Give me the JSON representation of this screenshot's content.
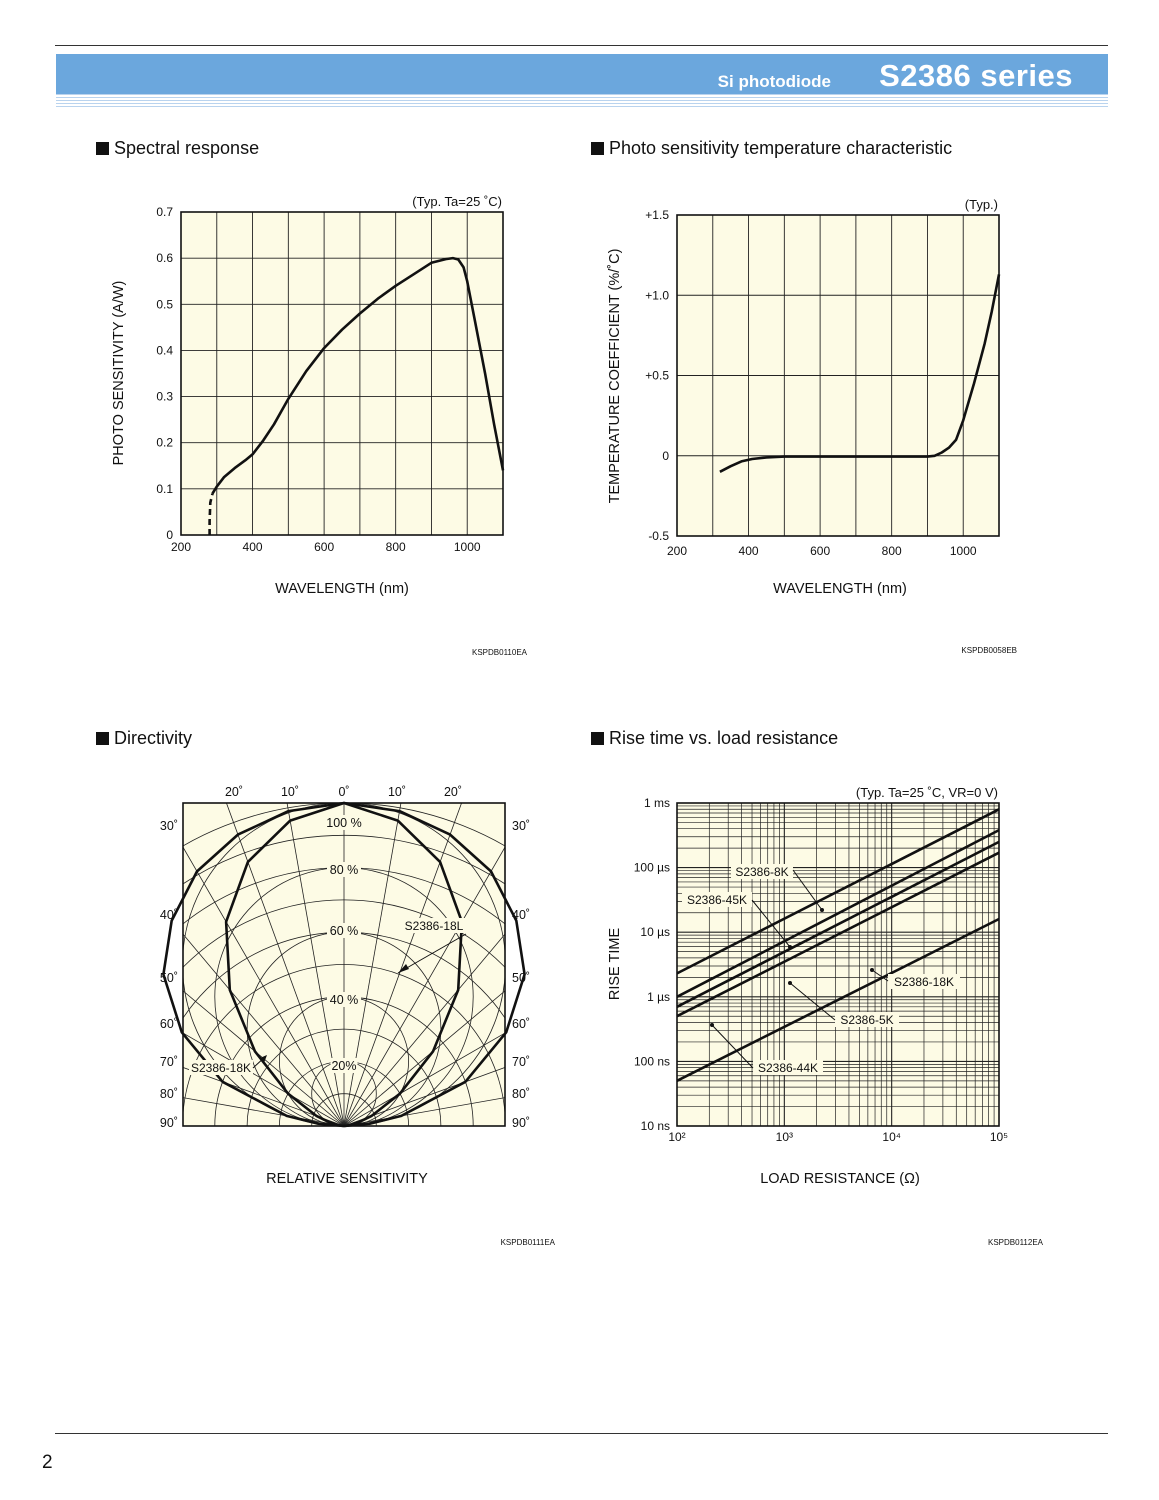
{
  "header": {
    "subtitle": "Si photodiode",
    "title": "S2386 series",
    "accent_color": "#6ba7dd"
  },
  "page_number": "2",
  "chart_data": [
    {
      "id": "spectral",
      "type": "line",
      "title": "Spectral response",
      "note": "(Typ. Ta=25 ˚C)",
      "xlabel": "WAVELENGTH (nm)",
      "ylabel": "PHOTO SENSITIVITY (A/W)",
      "code": "KSPDB0110EA",
      "xlim": [
        200,
        1100
      ],
      "ylim": [
        0,
        0.7
      ],
      "xticks": [
        200,
        400,
        600,
        800,
        1000
      ],
      "xtick_labels": [
        "200",
        "400",
        "600",
        "800",
        "1000"
      ],
      "yticks": [
        0,
        0.1,
        0.2,
        0.3,
        0.4,
        0.5,
        0.6,
        0.7
      ],
      "ytick_labels": [
        "0",
        "0.1",
        "0.2",
        "0.3",
        "0.4",
        "0.5",
        "0.6",
        "0.7"
      ],
      "grid": true,
      "series": [
        {
          "style": "dashed",
          "x": [
            280,
            280,
            282,
            288
          ],
          "y": [
            0.0,
            0.03,
            0.07,
            0.09
          ]
        },
        {
          "style": "solid",
          "x": [
            288,
            300,
            320,
            350,
            380,
            400,
            430,
            460,
            500,
            550,
            600,
            650,
            700,
            750,
            800,
            850,
            900,
            940,
            960,
            975,
            990,
            1000,
            1020,
            1050,
            1075,
            1100
          ],
          "y": [
            0.09,
            0.105,
            0.125,
            0.145,
            0.162,
            0.175,
            0.205,
            0.24,
            0.295,
            0.355,
            0.405,
            0.445,
            0.48,
            0.512,
            0.54,
            0.565,
            0.59,
            0.598,
            0.6,
            0.597,
            0.58,
            0.55,
            0.47,
            0.35,
            0.24,
            0.14
          ]
        }
      ]
    },
    {
      "id": "tempcoef",
      "type": "line",
      "title": "Photo sensitivity temperature characteristic",
      "note": "(Typ.)",
      "xlabel": "WAVELENGTH (nm)",
      "ylabel": "TEMPERATURE COEFFICIENT (%/˚C)",
      "code": "KSPDB0058EB",
      "xlim": [
        200,
        1100
      ],
      "ylim": [
        -0.5,
        1.5
      ],
      "xticks": [
        200,
        400,
        600,
        800,
        1000
      ],
      "xtick_labels": [
        "200",
        "400",
        "600",
        "800",
        "1000"
      ],
      "yticks": [
        -0.5,
        0,
        0.5,
        1.0,
        1.5
      ],
      "ytick_labels": [
        "-0.5",
        "0",
        "+0.5",
        "+1.0",
        "+1.5"
      ],
      "grid": true,
      "series": [
        {
          "style": "solid",
          "x": [
            320,
            350,
            380,
            410,
            450,
            500,
            600,
            700,
            800,
            900,
            920,
            940,
            960,
            980,
            1000,
            1030,
            1060,
            1080,
            1100
          ],
          "y": [
            -0.1,
            -0.065,
            -0.035,
            -0.02,
            -0.01,
            -0.005,
            -0.005,
            -0.005,
            -0.005,
            -0.005,
            0.0,
            0.02,
            0.05,
            0.1,
            0.22,
            0.45,
            0.7,
            0.9,
            1.13
          ]
        }
      ]
    },
    {
      "id": "directivity",
      "type": "polar",
      "title": "Directivity",
      "xlabel": "RELATIVE SENSITIVITY",
      "code": "KSPDB0111EA",
      "top_angle_labels": [
        "20˚",
        "10˚",
        "0˚",
        "10˚",
        "20˚"
      ],
      "side_angle_labels": [
        "30˚",
        "40˚",
        "50˚",
        "60˚",
        "70˚",
        "80˚",
        "90˚"
      ],
      "radial_labels": [
        "100 %",
        "80 %",
        "60 %",
        "40 %",
        "20%"
      ],
      "radial_values": [
        100,
        80,
        60,
        40,
        20
      ],
      "grid": true,
      "series": [
        {
          "name": "S2386-18L",
          "angles_deg": [
            0,
            10,
            20,
            30,
            40,
            50,
            60,
            70,
            75,
            80,
            85,
            90
          ],
          "values": [
            100,
            96,
            87,
            73,
            55,
            36,
            20,
            9,
            5,
            2.5,
            1,
            0
          ]
        },
        {
          "name": "S2386-18K",
          "angles_deg": [
            0,
            10,
            20,
            30,
            40,
            50,
            60,
            70,
            80,
            85,
            90
          ],
          "values": [
            100,
            99,
            96,
            91,
            83,
            73,
            58,
            40,
            18,
            8,
            0
          ]
        }
      ]
    },
    {
      "id": "risetime",
      "type": "line",
      "title": "Rise time vs. load resistance",
      "note": "(Typ. Ta=25 ˚C, VR=0 V)",
      "xlabel": "LOAD RESISTANCE (Ω)",
      "ylabel": "RISE TIME",
      "code": "KSPDB0112EA",
      "xscale": "log",
      "yscale": "log",
      "xlim": [
        100,
        100000
      ],
      "ylim": [
        1e-08,
        0.001
      ],
      "xtick_labels": [
        "10²",
        "10³",
        "10⁴",
        "10⁵"
      ],
      "ytick_labels": [
        "10 ns",
        "100 ns",
        "1 µs",
        "10 µs",
        "100 µs",
        "1 ms"
      ],
      "grid": true,
      "series": [
        {
          "name": "S2386-8K",
          "x": [
            100,
            100000
          ],
          "y": [
            2.3e-06,
            0.0008
          ]
        },
        {
          "name": "S2386-45K",
          "x": [
            100,
            100000
          ],
          "y": [
            1e-06,
            0.00038
          ]
        },
        {
          "name": "S2386-18K",
          "x": [
            100,
            100000
          ],
          "y": [
            7e-07,
            0.00025
          ]
        },
        {
          "name": "S2386-5K",
          "x": [
            100,
            100000
          ],
          "y": [
            5e-07,
            0.00017
          ]
        },
        {
          "name": "S2386-44K",
          "x": [
            100,
            100000
          ],
          "y": [
            5e-08,
            1.6e-05
          ]
        }
      ]
    }
  ]
}
